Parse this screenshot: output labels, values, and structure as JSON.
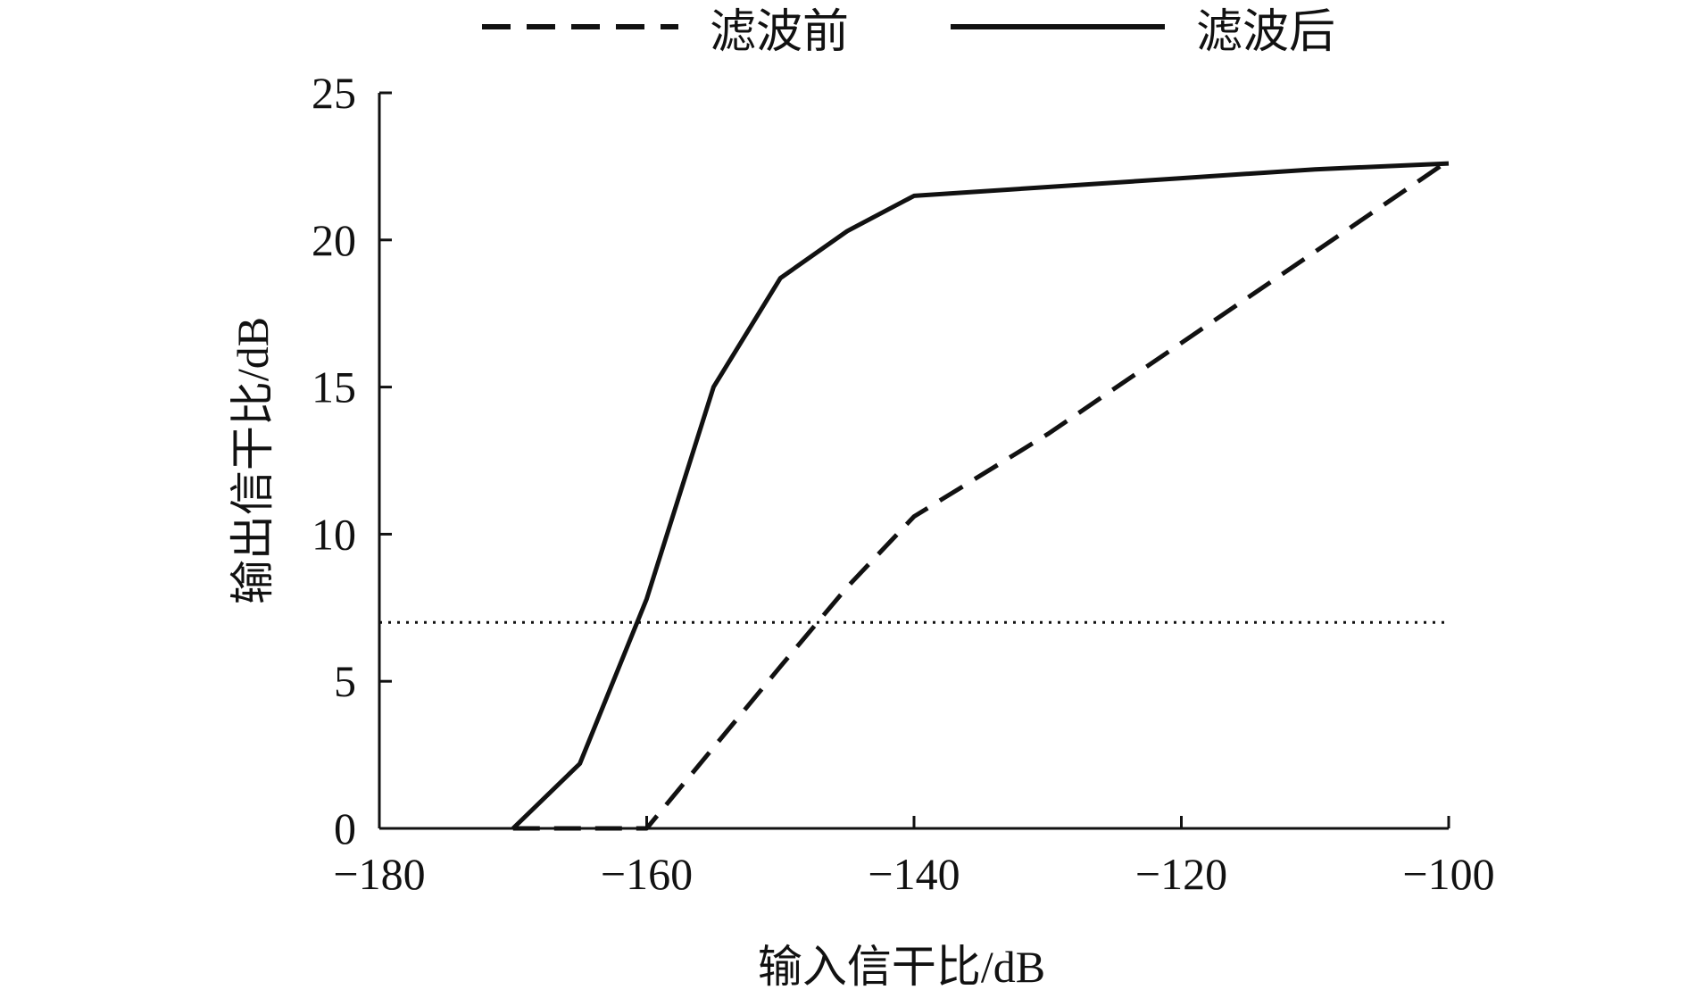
{
  "chart_data": {
    "type": "line",
    "xlabel": "输入信干比/dB",
    "ylabel": "输出信干比/dB",
    "xlim": [
      -180,
      -100
    ],
    "ylim": [
      0,
      25
    ],
    "xticks": [
      -180,
      -160,
      -140,
      -120,
      -100
    ],
    "yticks": [
      0,
      5,
      10,
      15,
      20,
      25
    ],
    "xtick_labels": [
      "−180",
      "−160",
      "−140",
      "−120",
      "−100"
    ],
    "ytick_labels": [
      "0",
      "5",
      "10",
      "15",
      "20",
      "25"
    ],
    "grid": false,
    "legend_position": "top",
    "series": [
      {
        "name": "滤波前",
        "style": "dashed",
        "color": "#111111",
        "x": [
          -170,
          -160,
          -150,
          -145,
          -140,
          -130,
          -120,
          -110,
          -100
        ],
        "y": [
          0,
          0,
          5.5,
          8.2,
          10.6,
          13.4,
          16.5,
          19.6,
          22.7
        ]
      },
      {
        "name": "滤波后",
        "style": "solid",
        "color": "#111111",
        "x": [
          -170,
          -165,
          -160,
          -155,
          -150,
          -145,
          -140,
          -130,
          -120,
          -110,
          -100
        ],
        "y": [
          0,
          2.2,
          7.8,
          15.0,
          18.7,
          20.3,
          21.5,
          21.8,
          22.1,
          22.4,
          22.6
        ]
      }
    ],
    "reference_lines": [
      {
        "y": 7,
        "style": "dotted",
        "color": "#111111"
      }
    ]
  }
}
